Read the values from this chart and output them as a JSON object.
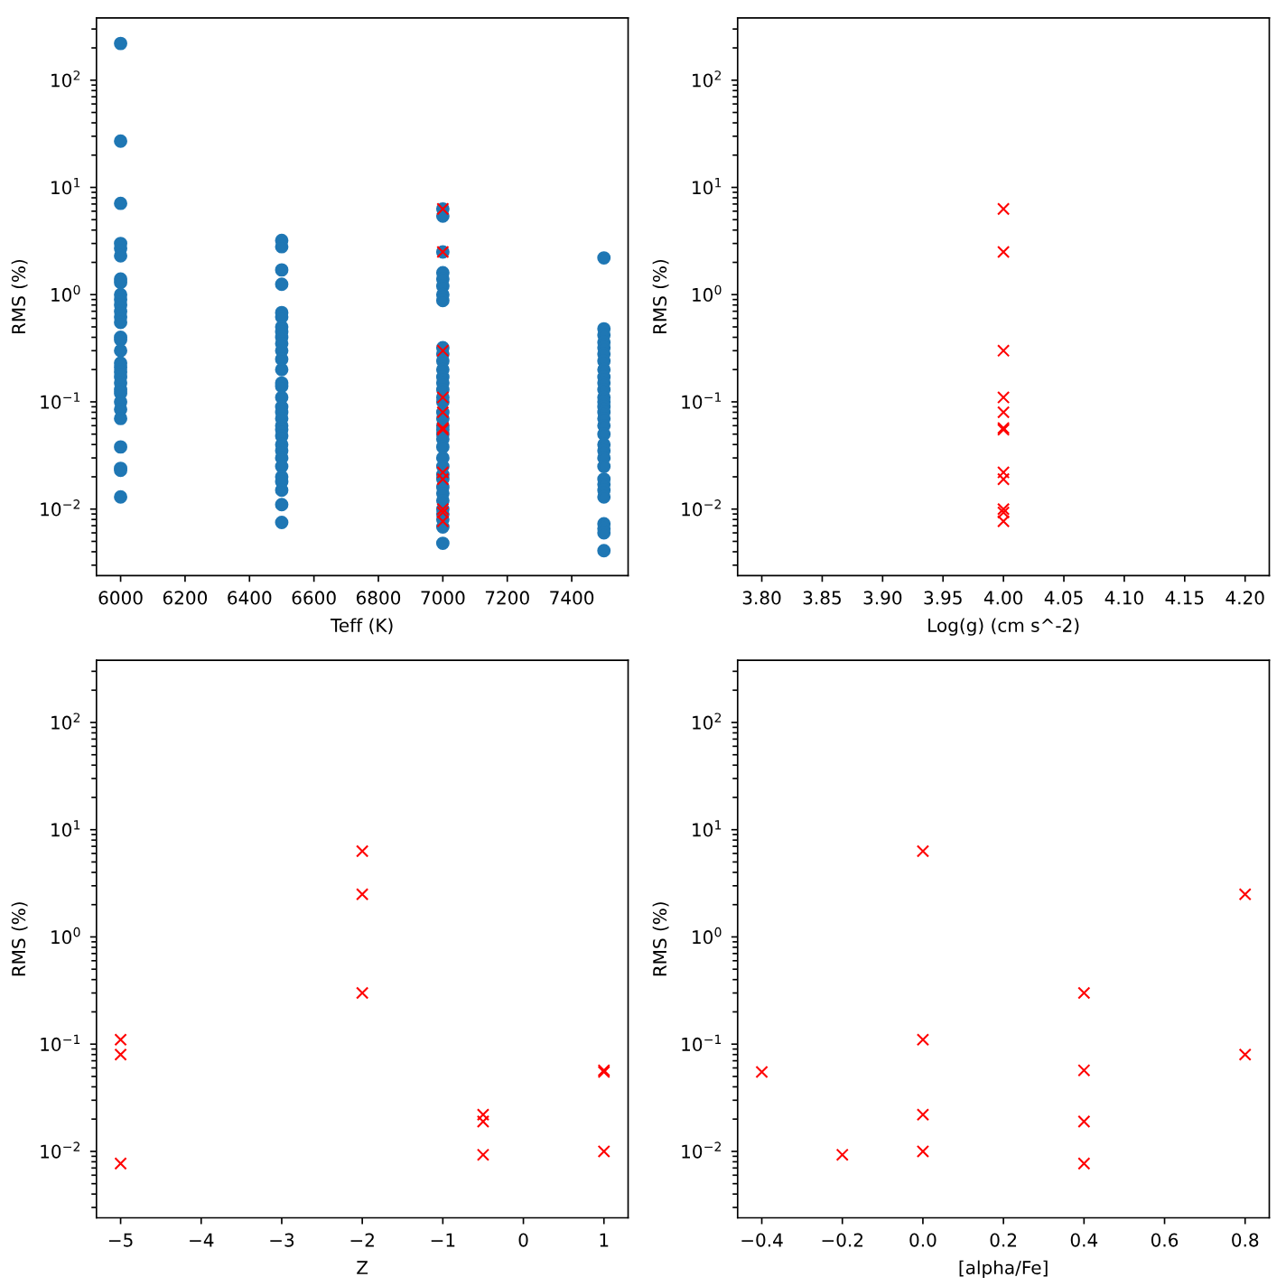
{
  "chart_data": [
    {
      "type": "scatter",
      "xlabel": "Teff (K)",
      "ylabel": "RMS (%)",
      "log": "y",
      "xlim": [
        5925,
        7575
      ],
      "xticks": [
        6000,
        6200,
        6400,
        6600,
        6800,
        7000,
        7200,
        7400
      ],
      "ylim": [
        0.0024,
        380
      ],
      "yticks": [
        {
          "value": 0.01,
          "label": "10$^{−2}$"
        },
        {
          "value": 0.1,
          "label": "10$^{−1}$"
        },
        {
          "value": 1,
          "label": "10$^{0}$"
        },
        {
          "value": 10,
          "label": "10$^{1}$"
        },
        {
          "value": 100,
          "label": "10$^{2}$"
        }
      ],
      "grid": false,
      "series": [
        {
          "color": "#1f77b4",
          "marker": "circle",
          "x": [
            6000,
            6000,
            6000,
            6000,
            6000,
            6000,
            6000,
            6000,
            6000,
            6000,
            6000,
            6000,
            6000,
            6000,
            6000,
            6000,
            6000,
            6000,
            6000,
            6000,
            6000,
            6000,
            6000,
            6000,
            6000,
            6000,
            6000,
            6000,
            6000,
            6000,
            6000,
            6500,
            6500,
            6500,
            6500,
            6500,
            6500,
            6500,
            6500,
            6500,
            6500,
            6500,
            6500,
            6500,
            6500,
            6500,
            6500,
            6500,
            6500,
            6500,
            6500,
            6500,
            6500,
            6500,
            6500,
            6500,
            6500,
            6500,
            6500,
            6500,
            6500,
            6500,
            7000,
            7000,
            7000,
            7000,
            7000,
            7000,
            7000,
            7000,
            7000,
            7000,
            7000,
            7000,
            7000,
            7000,
            7000,
            7000,
            7000,
            7000,
            7000,
            7000,
            7000,
            7000,
            7000,
            7000,
            7000,
            7000,
            7000,
            7000,
            7000,
            7000,
            7000,
            7000,
            7000,
            7000,
            7000,
            7000,
            7500,
            7500,
            7500,
            7500,
            7500,
            7500,
            7500,
            7500,
            7500,
            7500,
            7500,
            7500,
            7500,
            7500,
            7500,
            7500,
            7500,
            7500,
            7500,
            7500,
            7500,
            7500,
            7500,
            7500,
            7500,
            7500,
            7500,
            7500,
            7500,
            7500
          ],
          "values": [
            220,
            27,
            7.1,
            3.0,
            2.7,
            2.3,
            1.4,
            1.3,
            1.0,
            0.9,
            0.8,
            0.7,
            0.62,
            0.55,
            0.4,
            0.38,
            0.3,
            0.23,
            0.21,
            0.19,
            0.17,
            0.15,
            0.13,
            0.12,
            0.1,
            0.085,
            0.07,
            0.038,
            0.024,
            0.023,
            0.013,
            3.2,
            2.8,
            1.7,
            1.25,
            0.68,
            0.62,
            0.5,
            0.45,
            0.4,
            0.35,
            0.3,
            0.25,
            0.2,
            0.15,
            0.14,
            0.11,
            0.09,
            0.08,
            0.07,
            0.06,
            0.055,
            0.048,
            0.04,
            0.035,
            0.03,
            0.025,
            0.02,
            0.018,
            0.015,
            0.011,
            0.0075,
            6.3,
            5.4,
            2.5,
            1.6,
            1.4,
            1.2,
            1.0,
            0.88,
            0.32,
            0.28,
            0.24,
            0.2,
            0.17,
            0.15,
            0.13,
            0.11,
            0.1,
            0.08,
            0.07,
            0.06,
            0.055,
            0.05,
            0.045,
            0.038,
            0.03,
            0.025,
            0.021,
            0.019,
            0.016,
            0.014,
            0.012,
            0.01,
            0.009,
            0.008,
            0.0068,
            0.0048,
            2.2,
            0.48,
            0.42,
            0.36,
            0.32,
            0.28,
            0.24,
            0.2,
            0.17,
            0.15,
            0.13,
            0.11,
            0.1,
            0.09,
            0.08,
            0.07,
            0.06,
            0.05,
            0.04,
            0.035,
            0.03,
            0.025,
            0.019,
            0.017,
            0.015,
            0.013,
            0.0073,
            0.0066,
            0.006,
            0.0041
          ]
        },
        {
          "color": "#ff0000",
          "marker": "cross",
          "x": [
            7000,
            7000,
            7000,
            7000,
            7000,
            7000,
            7000,
            7000,
            7000,
            7000,
            7000,
            7000
          ],
          "values": [
            6.3,
            2.5,
            0.3,
            0.11,
            0.08,
            0.057,
            0.055,
            0.022,
            0.019,
            0.01,
            0.0093,
            0.0077
          ]
        }
      ]
    },
    {
      "type": "scatter",
      "xlabel": "Log(g) (cm s^-2)",
      "ylabel": "RMS (%)",
      "log": "y",
      "xlim": [
        3.78,
        4.22
      ],
      "xticks": [
        {
          "value": 3.8,
          "label": "3.80"
        },
        {
          "value": 3.85,
          "label": "3.85"
        },
        {
          "value": 3.9,
          "label": "3.90"
        },
        {
          "value": 3.95,
          "label": "3.95"
        },
        {
          "value": 4.0,
          "label": "4.00"
        },
        {
          "value": 4.05,
          "label": "4.05"
        },
        {
          "value": 4.1,
          "label": "4.10"
        },
        {
          "value": 4.15,
          "label": "4.15"
        },
        {
          "value": 4.2,
          "label": "4.20"
        }
      ],
      "ylim": [
        0.0024,
        380
      ],
      "yticks": [
        {
          "value": 0.01,
          "label": "10$^{−2}$"
        },
        {
          "value": 0.1,
          "label": "10$^{−1}$"
        },
        {
          "value": 1,
          "label": "10$^{0}$"
        },
        {
          "value": 10,
          "label": "10$^{1}$"
        },
        {
          "value": 100,
          "label": "10$^{2}$"
        }
      ],
      "grid": false,
      "series": [
        {
          "color": "#ff0000",
          "marker": "cross",
          "x": [
            4.0,
            4.0,
            4.0,
            4.0,
            4.0,
            4.0,
            4.0,
            4.0,
            4.0,
            4.0,
            4.0,
            4.0
          ],
          "values": [
            6.3,
            2.5,
            0.3,
            0.11,
            0.08,
            0.057,
            0.055,
            0.022,
            0.019,
            0.01,
            0.0093,
            0.0077
          ]
        }
      ]
    },
    {
      "type": "scatter",
      "xlabel": "Z",
      "ylabel": "RMS (%)",
      "log": "y",
      "xlim": [
        -5.3,
        1.3
      ],
      "xticks": [
        {
          "value": -5,
          "label": "−5"
        },
        {
          "value": -4,
          "label": "−4"
        },
        {
          "value": -3,
          "label": "−3"
        },
        {
          "value": -2,
          "label": "−2"
        },
        {
          "value": -1,
          "label": "−1"
        },
        0,
        1
      ],
      "ylim": [
        0.0024,
        380
      ],
      "yticks": [
        {
          "value": 0.01,
          "label": "10$^{−2}$"
        },
        {
          "value": 0.1,
          "label": "10$^{−1}$"
        },
        {
          "value": 1,
          "label": "10$^{0}$"
        },
        {
          "value": 10,
          "label": "10$^{1}$"
        },
        {
          "value": 100,
          "label": "10$^{2}$"
        }
      ],
      "grid": false,
      "series": [
        {
          "color": "#ff0000",
          "marker": "cross",
          "x": [
            -2,
            -2,
            -2,
            -5,
            -5,
            1,
            1,
            -0.5,
            -0.5,
            1,
            -0.5,
            -5
          ],
          "values": [
            6.3,
            2.5,
            0.3,
            0.11,
            0.08,
            0.057,
            0.055,
            0.022,
            0.019,
            0.01,
            0.0093,
            0.0077
          ]
        }
      ]
    },
    {
      "type": "scatter",
      "xlabel": "[alpha/Fe]",
      "ylabel": "RMS (%)",
      "log": "y",
      "xlim": [
        -0.46,
        0.86
      ],
      "xticks": [
        {
          "value": -0.4,
          "label": "−0.4"
        },
        {
          "value": -0.2,
          "label": "−0.2"
        },
        {
          "value": 0.0,
          "label": "0.0"
        },
        {
          "value": 0.2,
          "label": "0.2"
        },
        {
          "value": 0.4,
          "label": "0.4"
        },
        {
          "value": 0.6,
          "label": "0.6"
        },
        {
          "value": 0.8,
          "label": "0.8"
        }
      ],
      "ylim": [
        0.0024,
        380
      ],
      "yticks": [
        {
          "value": 0.01,
          "label": "10$^{−2}$"
        },
        {
          "value": 0.1,
          "label": "10$^{−1}$"
        },
        {
          "value": 1,
          "label": "10$^{0}$"
        },
        {
          "value": 10,
          "label": "10$^{1}$"
        },
        {
          "value": 100,
          "label": "10$^{2}$"
        }
      ],
      "grid": false,
      "series": [
        {
          "color": "#ff0000",
          "marker": "cross",
          "x": [
            0.0,
            0.8,
            0.4,
            0.0,
            0.8,
            0.4,
            -0.4,
            0.0,
            0.4,
            0.0,
            -0.2,
            0.4
          ],
          "values": [
            6.3,
            2.5,
            0.3,
            0.11,
            0.08,
            0.057,
            0.055,
            0.022,
            0.019,
            0.01,
            0.0093,
            0.0077
          ]
        }
      ]
    }
  ]
}
